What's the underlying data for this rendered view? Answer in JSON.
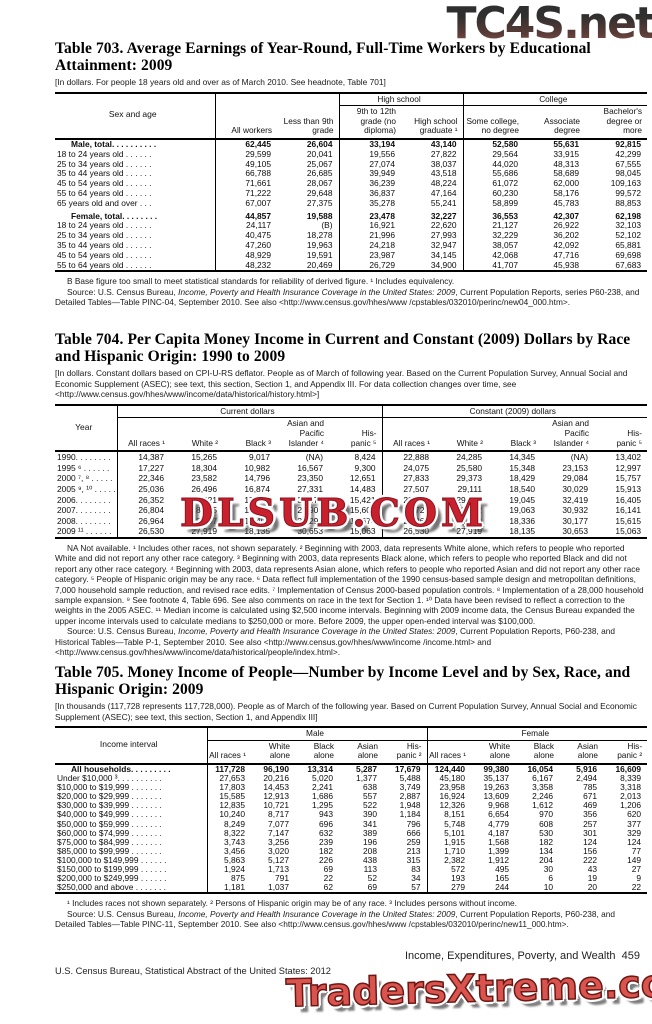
{
  "watermarks": {
    "top": "TC4S.net",
    "middle": "DLSUB.COM",
    "bottom": "TradersXtreme.com",
    "colors": {
      "dlsub_red": "#c8202c",
      "traders_red": "#d9534f",
      "tc4s_gradient_top": "#2f2f2f",
      "tc4s_gradient_bottom": "#9c5a50"
    }
  },
  "footer": {
    "running_head": "Income, Expenditures, Poverty, and Wealth",
    "page_number": "459",
    "credit_line": "U.S. Census Bureau, Statistical Abstract of the United States: 2012"
  },
  "t703": {
    "title": "Table 703. Average Earnings of Year-Round, Full-Time Workers by Educational Attainment: 2009",
    "headnote": "[In dollars. For people 18 years old and over as of March 2010. See headnote, Table 701]",
    "header": {
      "col1": "Sex and age",
      "group_high_school": "High school",
      "group_college": "College",
      "cols": [
        "All workers",
        "Less than 9th grade",
        "9th to 12th grade (no diploma)",
        "High school graduate ¹",
        "Some college, no degree",
        "Associate degree",
        "Bachelor's degree or more"
      ]
    },
    "rows": [
      {
        "label": "Male, total. . . . . . . . . .",
        "bold": true,
        "values": [
          "62,445",
          "26,604",
          "33,194",
          "43,140",
          "52,580",
          "55,631",
          "92,815"
        ]
      },
      {
        "label": "18 to 24 years old . . . . . .",
        "values": [
          "29,599",
          "20,041",
          "19,556",
          "27,822",
          "29,564",
          "33,915",
          "42,299"
        ]
      },
      {
        "label": "25 to 34 years old . . . . . .",
        "values": [
          "49,105",
          "25,067",
          "27,074",
          "38,037",
          "44,020",
          "48,313",
          "67,555"
        ]
      },
      {
        "label": "35 to 44 years old . . . . . .",
        "values": [
          "66,788",
          "26,685",
          "39,949",
          "43,518",
          "55,686",
          "58,689",
          "98,045"
        ]
      },
      {
        "label": "45 to 54 years old . . . . . .",
        "values": [
          "71,661",
          "28,067",
          "36,239",
          "48,224",
          "61,072",
          "62,000",
          "109,163"
        ]
      },
      {
        "label": "55 to 64 years old . . . . . .",
        "values": [
          "71,222",
          "29,648",
          "36,837",
          "47,164",
          "60,230",
          "58,176",
          "99,572"
        ]
      },
      {
        "label": "65 years old and over . . .",
        "values": [
          "67,007",
          "27,375",
          "35,278",
          "55,241",
          "58,899",
          "45,783",
          "88,853"
        ]
      },
      {
        "label": "Female, total. . . . . . . .",
        "bold": true,
        "gap": true,
        "values": [
          "44,857",
          "19,588",
          "23,478",
          "32,227",
          "36,553",
          "42,307",
          "62,198"
        ]
      },
      {
        "label": "18 to 24 years old . . . . . .",
        "values": [
          "24,117",
          "(B)",
          "16,921",
          "22,620",
          "21,127",
          "26,922",
          "32,103"
        ]
      },
      {
        "label": "25 to 34 years old . . . . . .",
        "values": [
          "40,475",
          "18,278",
          "21,996",
          "27,993",
          "32,229",
          "36,202",
          "52,102"
        ]
      },
      {
        "label": "35 to 44 years old . . . . . .",
        "values": [
          "47,260",
          "19,963",
          "24,218",
          "32,947",
          "38,057",
          "42,092",
          "65,881"
        ]
      },
      {
        "label": "45 to 54 years old . . . . . .",
        "values": [
          "48,929",
          "19,591",
          "23,987",
          "34,145",
          "42,068",
          "47,716",
          "69,698"
        ]
      },
      {
        "label": "55 to 64 years old . . . . . .",
        "values": [
          "48,232",
          "20,469",
          "26,729",
          "34,900",
          "41,707",
          "45,938",
          "67,683"
        ]
      }
    ],
    "footnote_b": "B Base figure too small to meet statistical standards for reliability of derived figure. ¹ Includes equivalency.",
    "source": {
      "prefix": "Source: U.S. Census Bureau, ",
      "italic": "Income, Poverty and Health Insurance Coverage in the United States: 2009",
      "suffix": ", Current Population Reports, series P60-238, and Detailed Tables—Table PINC-04, September 2010. See also <http://www.census.gov/hhes/www /cpstables/032010/perinc/new04_000.htm>."
    }
  },
  "t704": {
    "title": "Table 704. Per Capita Money Income in Current and Constant (2009) Dollars by Race and Hispanic Origin: 1990 to 2009",
    "headnote": "[In dollars. Constant dollars based on CPI-U-RS deflator. People as of March of following year. Based on the Current Population Survey, Annual Social and Economic Supplement (ASEC); see text, this section, Section 1, and Appendix III. For data collection changes over time, see <http://www.census.gov/hhes/www/income/data/historical/history.html>]",
    "header": {
      "col1": "Year",
      "group_current": "Current dollars",
      "group_constant": "Constant (2009) dollars",
      "cols": [
        "All races ¹",
        "White ²",
        "Black ³",
        "Asian and Pacific Islander ⁴",
        "His-\npanic ⁵",
        "All races ¹",
        "White ²",
        "Black ³",
        "Asian and Pacific Islander ⁴",
        "His-\npanic ⁵"
      ]
    },
    "rows": [
      {
        "label": "1990. . . . . . . .",
        "values": [
          "14,387",
          "15,265",
          "9,017",
          "(NA)",
          "8,424",
          "22,888",
          "24,285",
          "14,345",
          "(NA)",
          "13,402"
        ]
      },
      {
        "label": "1995 ⁶ . . . . . .",
        "values": [
          "17,227",
          "18,304",
          "10,982",
          "16,567",
          "9,300",
          "24,075",
          "25,580",
          "15,348",
          "23,153",
          "12,997"
        ]
      },
      {
        "label": "2000 ⁷, ⁸ . . . . .",
        "values": [
          "22,346",
          "23,582",
          "14,796",
          "23,350",
          "12,651",
          "27,833",
          "29,373",
          "18,429",
          "29,084",
          "15,757"
        ]
      },
      {
        "label": "2005 ⁹, ¹⁰ . . . . .",
        "values": [
          "25,036",
          "26,496",
          "16,874",
          "27,331",
          "14,483",
          "27,507",
          "29,111",
          "18,540",
          "30,029",
          "15,913"
        ]
      },
      {
        "label": "2006. . . . . . . .",
        "values": [
          "26,352",
          "27,821",
          "17,902",
          "30,474",
          "15,421",
          "28,034",
          "29,597",
          "19,045",
          "32,419",
          "16,405"
        ]
      },
      {
        "label": "2007. . . . . . . .",
        "values": [
          "26,804",
          "28,325",
          "18,428",
          "29,901",
          "15,603",
          "27,728",
          "29,302",
          "19,063",
          "30,932",
          "16,141"
        ]
      },
      {
        "label": "2008. . . . . . . .",
        "values": [
          "26,964",
          "28,407",
          "18,406",
          "30,292",
          "15,674",
          "26,861",
          "28,299",
          "18,336",
          "30,177",
          "15,615"
        ]
      },
      {
        "label": "2009 ¹¹ . . . . . .",
        "values": [
          "26,530",
          "27,919",
          "18,135",
          "30,653",
          "15,063",
          "26,530",
          "27,919",
          "18,135",
          "30,653",
          "15,063"
        ]
      }
    ],
    "footnote": "NA Not available. ¹ Includes other races, not shown separately. ² Beginning with 2003, data represents White alone, which refers to people who reported White and did not report any other race category. ³ Beginning with 2003, data represents Black alone, which refers to people who reported Black and did not report any other race category. ⁴ Beginning with 2003, data represents Asian alone, which refers to people who reported Asian and did not report any other race category. ⁵ People of Hispanic origin may be any race. ⁶ Data reflect full implementation of the 1990 census-based sample design and metropolitan definitions, 7,000 household sample reduction, and revised race edits. ⁷ Implementation of Census 2000-based population controls. ⁸ Implementation of a 28,000 household sample expansion. ⁹ See footnote 4, Table 696. See also comments on race in the text for Section 1. ¹⁰ Data have been revised to reflect a correction to the weights in the 2005 ASEC. ¹¹ Median income is calculated using $2,500 income intervals. Beginning with 2009 income data, the Census Bureau expanded the upper income intervals used to calculate medians to $250,000 or more. Before 2009, the upper open-ended interval was $100,000.",
    "source": {
      "prefix": "Source: U.S. Census Bureau, ",
      "italic": "Income, Poverty and Health Insurance Coverage in the United States: 2009",
      "suffix": ", Current Population Reports, P60-238, and Historical Tables—Table P-1, September 2010. See also <http://www.census.gov/hhes/www/income /income.html> and <http://www.census.gov/hhes/www/income/data/historical/people/index.html>."
    }
  },
  "t705": {
    "title": "Table 705. Money Income of People—Number by Income Level and by Sex, Race, and Hispanic Origin: 2009",
    "headnote": "[In thousands (117,728 represents 117,728,000). People as of March of the following year. Based on Current Population Survey, Annual Social and Economic Supplement (ASEC); see text, this section, Section 1, and Appendix III]",
    "header": {
      "col1": "Income interval",
      "group_male": "Male",
      "group_female": "Female",
      "cols": [
        "All races ¹",
        "White alone",
        "Black alone",
        "Asian alone",
        "His-\npanic ²",
        "All races ¹",
        "White alone",
        "Black alone",
        "Asian alone",
        "His-\npanic ²"
      ]
    },
    "rows": [
      {
        "label": "All households. . . . . . . . .",
        "bold": true,
        "values": [
          "117,728",
          "96,190",
          "13,314",
          "5,287",
          "17,679",
          "124,440",
          "99,380",
          "16,054",
          "5,916",
          "16,609"
        ]
      },
      {
        "label": "Under $10,000 ³. . . . . . . . . .",
        "values": [
          "27,653",
          "20,216",
          "5,020",
          "1,377",
          "5,488",
          "45,180",
          "35,137",
          "6,167",
          "2,494",
          "8,339"
        ]
      },
      {
        "label": "$10,000 to $19,999 . . . . . . .",
        "values": [
          "17,803",
          "14,453",
          "2,241",
          "638",
          "3,749",
          "23,958",
          "19,263",
          "3,358",
          "785",
          "3,318"
        ]
      },
      {
        "label": "$20,000 to $29,999 . . . . . . .",
        "values": [
          "15,585",
          "12,913",
          "1,686",
          "557",
          "2,887",
          "16,924",
          "13,609",
          "2,246",
          "671",
          "2,013"
        ]
      },
      {
        "label": "$30,000 to $39,999 . . . . . . .",
        "values": [
          "12,835",
          "10,721",
          "1,295",
          "522",
          "1,948",
          "12,326",
          "9,968",
          "1,612",
          "469",
          "1,206"
        ]
      },
      {
        "label": "$40,000 to $49,999 . . . . . . .",
        "values": [
          "10,240",
          "8,717",
          "943",
          "390",
          "1,184",
          "8,151",
          "6,654",
          "970",
          "356",
          "620"
        ]
      },
      {
        "label": "$50,000 to $59,999 . . . . . . .",
        "values": [
          "8,249",
          "7,077",
          "696",
          "341",
          "796",
          "5,748",
          "4,779",
          "608",
          "257",
          "377"
        ]
      },
      {
        "label": "$60,000 to $74,999 . . . . . . .",
        "values": [
          "8,322",
          "7,147",
          "632",
          "389",
          "666",
          "5,101",
          "4,187",
          "530",
          "301",
          "329"
        ]
      },
      {
        "label": "$75,000 to $84,999 . . . . . . .",
        "values": [
          "3,743",
          "3,256",
          "239",
          "196",
          "259",
          "1,915",
          "1,568",
          "182",
          "124",
          "124"
        ]
      },
      {
        "label": "$85,000 to $99,999 . . . . . . .",
        "values": [
          "3,456",
          "3,020",
          "182",
          "208",
          "213",
          "1,710",
          "1,399",
          "134",
          "156",
          "77"
        ]
      },
      {
        "label": "$100,000 to $149,999 . . . . . .",
        "values": [
          "5,863",
          "5,127",
          "226",
          "438",
          "315",
          "2,382",
          "1,912",
          "204",
          "222",
          "149"
        ]
      },
      {
        "label": "$150,000 to $199,999 . . . . . .",
        "values": [
          "1,924",
          "1,713",
          "69",
          "113",
          "83",
          "572",
          "495",
          "30",
          "43",
          "27"
        ]
      },
      {
        "label": "$200,000 to $249,999 . . . . . .",
        "values": [
          "875",
          "791",
          "22",
          "52",
          "34",
          "193",
          "165",
          "6",
          "19",
          "9"
        ]
      },
      {
        "label": "$250,000 and above . . . . . . .",
        "values": [
          "1,181",
          "1,037",
          "62",
          "69",
          "57",
          "279",
          "244",
          "10",
          "20",
          "22"
        ]
      }
    ],
    "footnote": "¹ Includes races not shown separately. ² Persons of Hispanic origin may be of any race. ³ Includes persons without income.",
    "source": {
      "prefix": "Source: U.S. Census Bureau, ",
      "italic": "Income, Poverty and Health Insurance Coverage in the United States: 2009",
      "suffix": ", Current Population Reports, P60-238, and Detailed Tables—Table PINC-11, September 2010. See also <http://www.census.gov/hhes/www /cpstables/032010/perinc/new11_000.htm>."
    }
  }
}
